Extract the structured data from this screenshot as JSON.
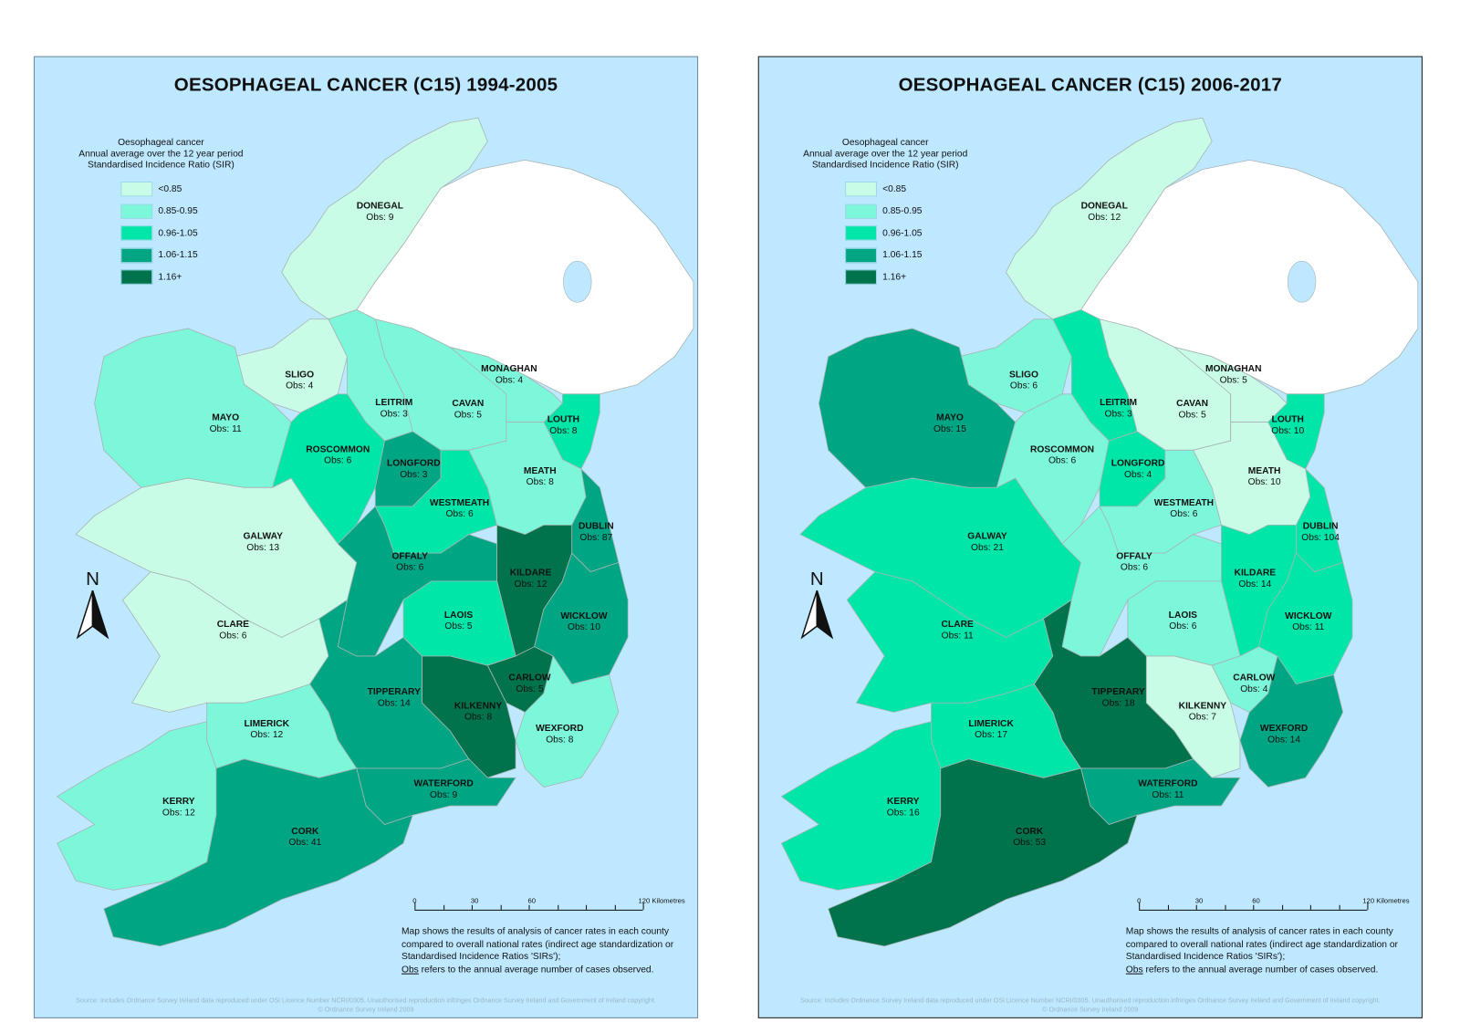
{
  "legend_classes": [
    {
      "label": "<0.85",
      "color": "#c8fce6"
    },
    {
      "label": "0.85-0.95",
      "color": "#7df7da"
    },
    {
      "label": "0.96-1.05",
      "color": "#00e6a8"
    },
    {
      "label": "1.06-1.15",
      "color": "#00a583"
    },
    {
      "label": "1.16+",
      "color": "#00734c"
    }
  ],
  "colors": {
    "sea": "#bee8ff",
    "northern_ireland": "#ffffff",
    "county_border": "#a9b4b4",
    "lake": "#bee8ff"
  },
  "legend_title": [
    "Oesophageal cancer",
    "Annual average over the 12 year period",
    "Standardised Incidence Ratio (SIR)"
  ],
  "north_label": "N",
  "scale": {
    "ticks": [
      "0",
      "30",
      "60",
      "120 Kilometres"
    ]
  },
  "note": {
    "lines": [
      "Map shows the results of analysis of cancer rates in each county",
      "compared to overall national rates (indirect age standardization or",
      "Standardised Incidence Ratios 'SIRs');"
    ],
    "obs_word": "Obs",
    "obs_rest": " refers to the annual average number of cases observed."
  },
  "source": [
    "Source: Includes Ordnance Survey Ireland data reproduced under OSi Licence Number NCRI/0305. Unauthorised reproduction infringes Ordnance Survey Ireland and Government of Ireland copyright.",
    "© Ordnance Survey Ireland 2009"
  ],
  "panels": [
    {
      "title": "OESOPHAGEAL CANCER (C15) 1994-2005",
      "counties": [
        {
          "name": "DONEGAL",
          "obs": "Obs: 9",
          "class": 0
        },
        {
          "name": "SLIGO",
          "obs": "Obs: 4",
          "class": 0
        },
        {
          "name": "MAYO",
          "obs": "Obs: 11",
          "class": 1
        },
        {
          "name": "LEITRIM",
          "obs": "Obs: 3",
          "class": 1
        },
        {
          "name": "CAVAN",
          "obs": "Obs: 5",
          "class": 1
        },
        {
          "name": "MONAGHAN",
          "obs": "Obs: 4",
          "class": 1
        },
        {
          "name": "LOUTH",
          "obs": "Obs: 8",
          "class": 2
        },
        {
          "name": "ROSCOMMON",
          "obs": "Obs: 6",
          "class": 2
        },
        {
          "name": "LONGFORD",
          "obs": "Obs: 3",
          "class": 3
        },
        {
          "name": "WESTMEATH",
          "obs": "Obs: 6",
          "class": 2
        },
        {
          "name": "MEATH",
          "obs": "Obs: 8",
          "class": 1
        },
        {
          "name": "DUBLIN",
          "obs": "Obs: 87",
          "class": 3
        },
        {
          "name": "GALWAY",
          "obs": "Obs: 13",
          "class": 0
        },
        {
          "name": "OFFALY",
          "obs": "Obs: 6",
          "class": 3
        },
        {
          "name": "KILDARE",
          "obs": "Obs: 12",
          "class": 4
        },
        {
          "name": "LAOIS",
          "obs": "Obs: 5",
          "class": 2
        },
        {
          "name": "WICKLOW",
          "obs": "Obs: 10",
          "class": 3
        },
        {
          "name": "CLARE",
          "obs": "Obs: 6",
          "class": 0
        },
        {
          "name": "TIPPERARY",
          "obs": "Obs: 14",
          "class": 3
        },
        {
          "name": "KILKENNY",
          "obs": "Obs: 8",
          "class": 4
        },
        {
          "name": "CARLOW",
          "obs": "Obs: 5",
          "class": 4
        },
        {
          "name": "WEXFORD",
          "obs": "Obs: 8",
          "class": 1
        },
        {
          "name": "LIMERICK",
          "obs": "Obs: 12",
          "class": 1
        },
        {
          "name": "WATERFORD",
          "obs": "Obs: 9",
          "class": 3
        },
        {
          "name": "KERRY",
          "obs": "Obs: 12",
          "class": 1
        },
        {
          "name": "CORK",
          "obs": "Obs: 41",
          "class": 3
        }
      ]
    },
    {
      "title": "OESOPHAGEAL CANCER (C15) 2006-2017",
      "counties": [
        {
          "name": "DONEGAL",
          "obs": "Obs: 12",
          "class": 0
        },
        {
          "name": "SLIGO",
          "obs": "Obs: 6",
          "class": 1
        },
        {
          "name": "MAYO",
          "obs": "Obs: 15",
          "class": 3
        },
        {
          "name": "LEITRIM",
          "obs": "Obs: 3",
          "class": 2
        },
        {
          "name": "CAVAN",
          "obs": "Obs: 5",
          "class": 0
        },
        {
          "name": "MONAGHAN",
          "obs": "Obs: 5",
          "class": 0
        },
        {
          "name": "LOUTH",
          "obs": "Obs: 10",
          "class": 2
        },
        {
          "name": "ROSCOMMON",
          "obs": "Obs: 6",
          "class": 1
        },
        {
          "name": "LONGFORD",
          "obs": "Obs: 4",
          "class": 2
        },
        {
          "name": "WESTMEATH",
          "obs": "Obs: 6",
          "class": 1
        },
        {
          "name": "MEATH",
          "obs": "Obs: 10",
          "class": 0
        },
        {
          "name": "DUBLIN",
          "obs": "Obs: 104",
          "class": 2
        },
        {
          "name": "GALWAY",
          "obs": "Obs: 21",
          "class": 2
        },
        {
          "name": "OFFALY",
          "obs": "Obs: 6",
          "class": 1
        },
        {
          "name": "KILDARE",
          "obs": "Obs: 14",
          "class": 2
        },
        {
          "name": "LAOIS",
          "obs": "Obs: 6",
          "class": 1
        },
        {
          "name": "WICKLOW",
          "obs": "Obs: 11",
          "class": 2
        },
        {
          "name": "CLARE",
          "obs": "Obs: 11",
          "class": 2
        },
        {
          "name": "TIPPERARY",
          "obs": "Obs: 18",
          "class": 4
        },
        {
          "name": "KILKENNY",
          "obs": "Obs: 7",
          "class": 0
        },
        {
          "name": "CARLOW",
          "obs": "Obs: 4",
          "class": 1
        },
        {
          "name": "WEXFORD",
          "obs": "Obs: 14",
          "class": 3
        },
        {
          "name": "LIMERICK",
          "obs": "Obs: 17",
          "class": 2
        },
        {
          "name": "WATERFORD",
          "obs": "Obs: 11",
          "class": 3
        },
        {
          "name": "KERRY",
          "obs": "Obs: 16",
          "class": 2
        },
        {
          "name": "CORK",
          "obs": "Obs: 53",
          "class": 4
        }
      ]
    }
  ]
}
